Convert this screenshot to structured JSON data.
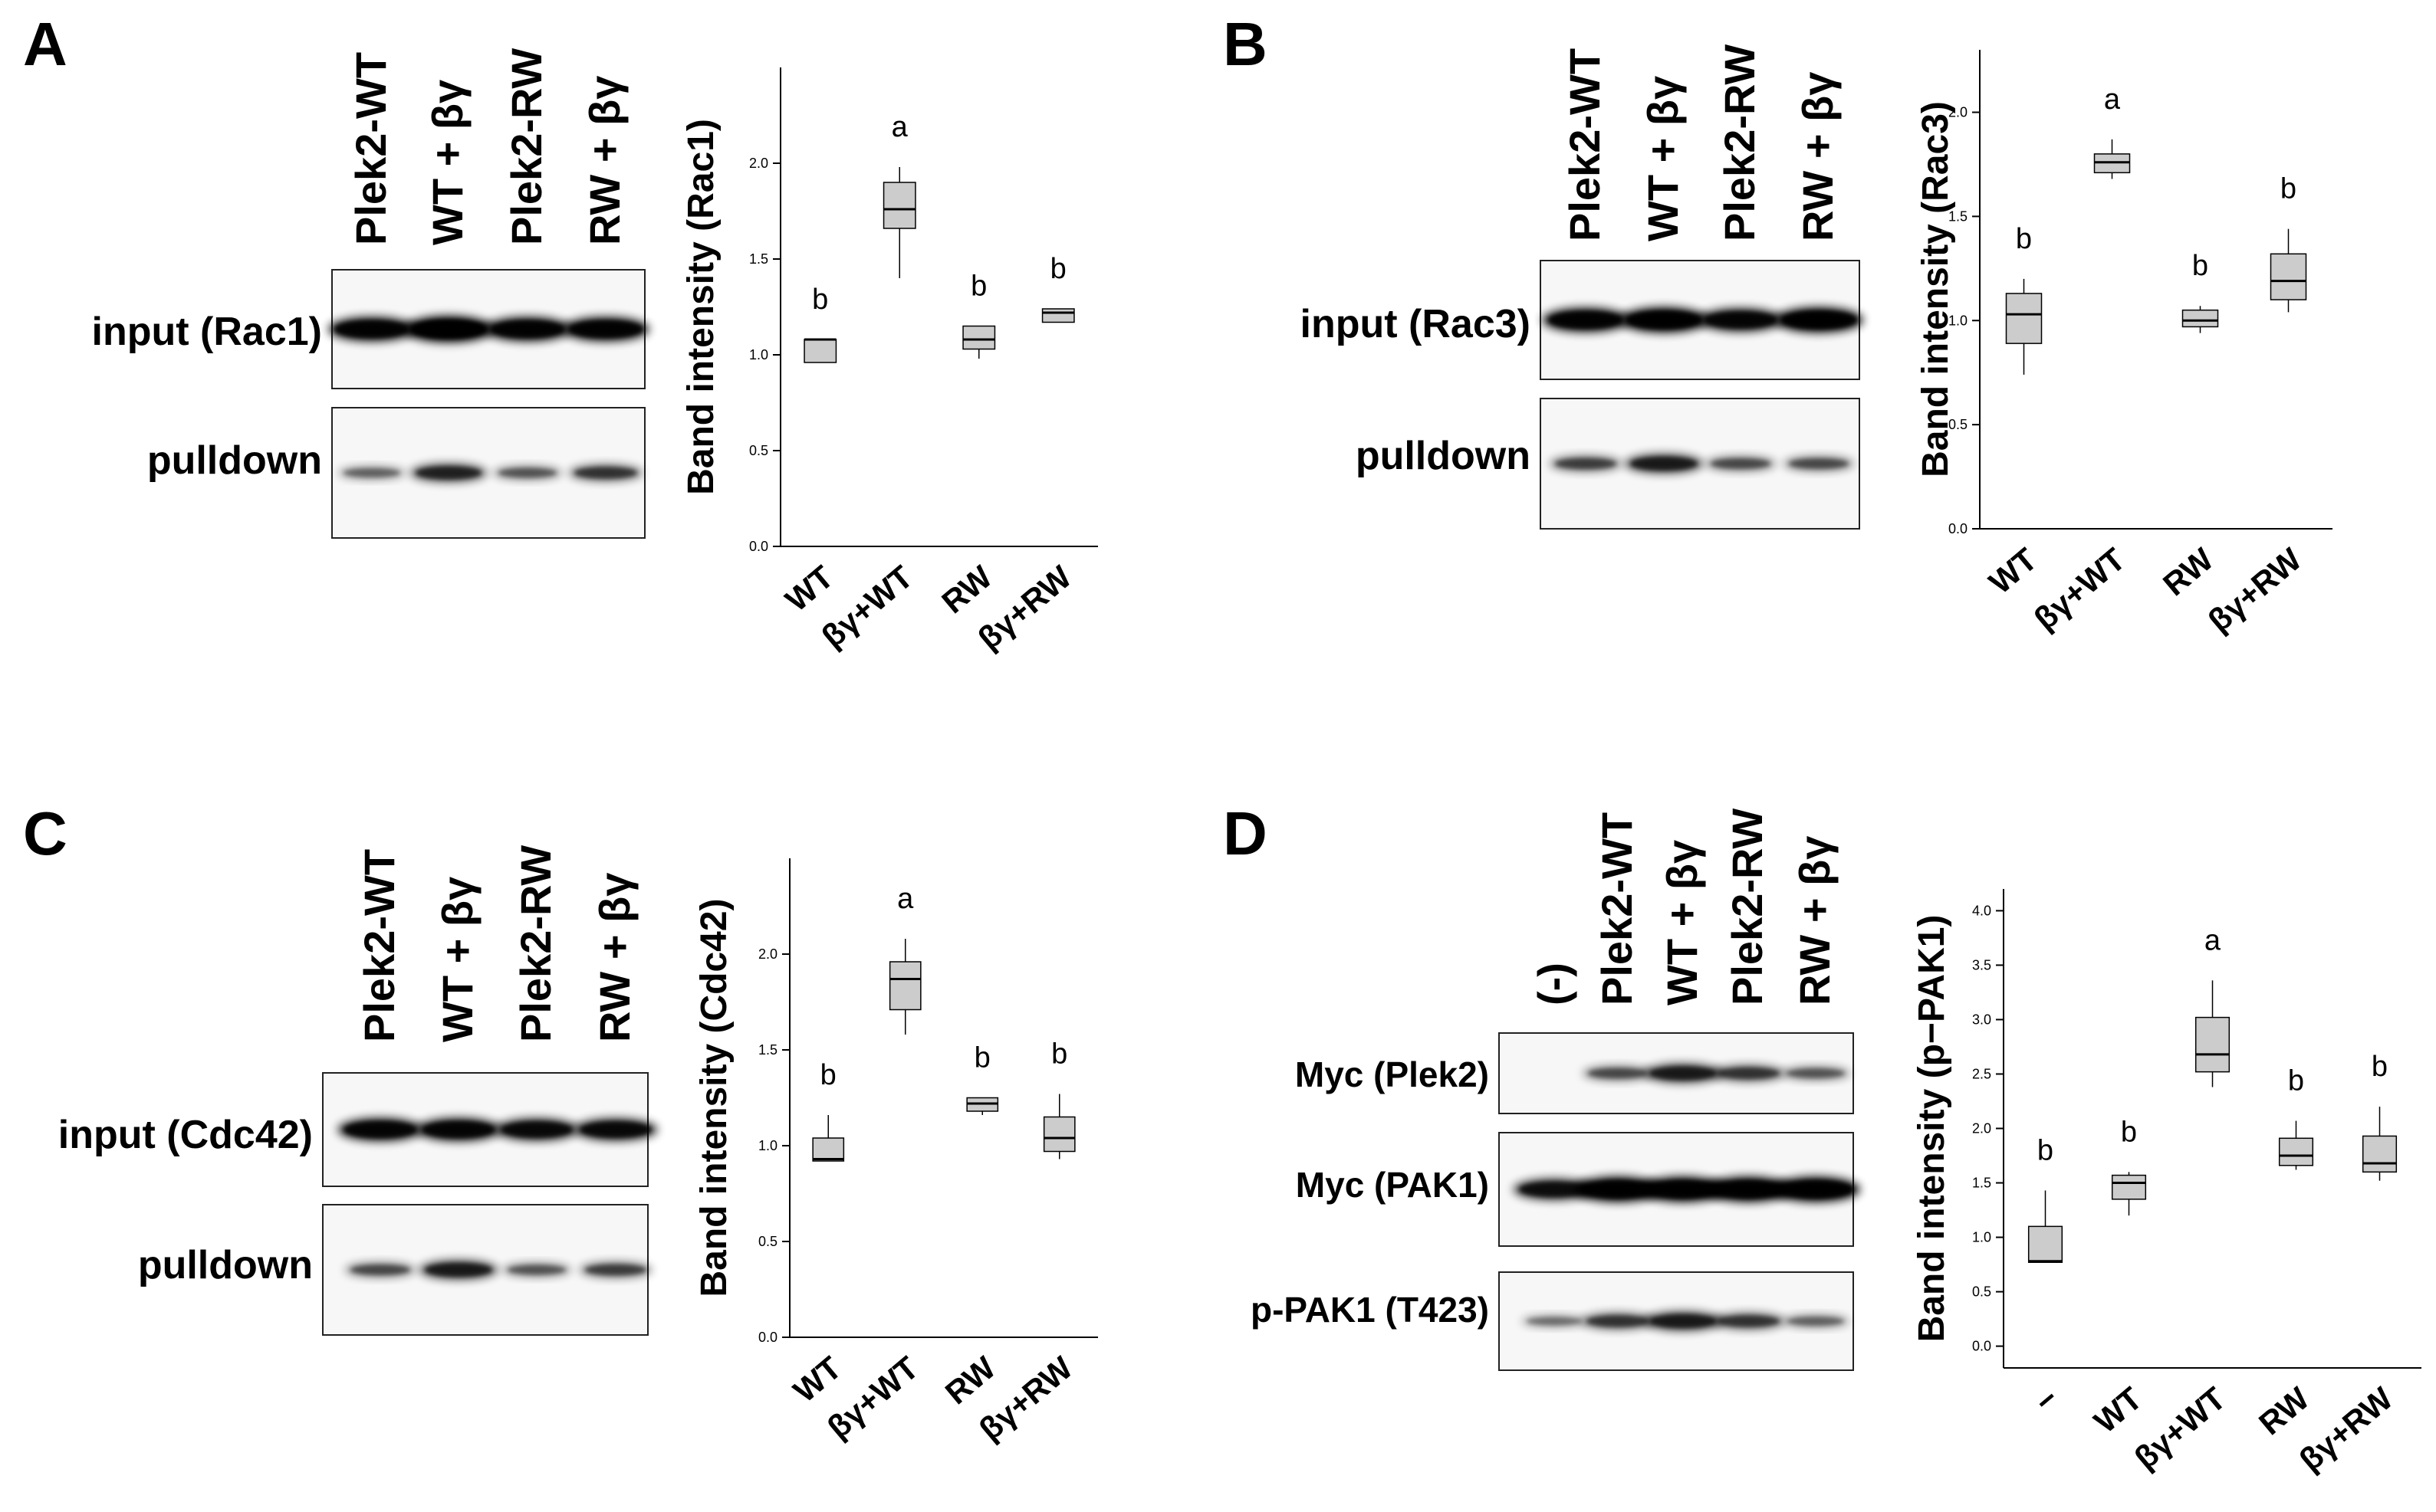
{
  "panels": [
    {
      "id": "A",
      "letter": "A",
      "lanes": [
        "Plek2-WT",
        "WT + βγ",
        "Plek2-RW",
        "RW + βγ"
      ],
      "blot_rows": [
        "input (Rac1)",
        "pulldown"
      ],
      "band_strength": [
        [
          0.85,
          0.95,
          0.85,
          0.85
        ],
        [
          0.25,
          0.55,
          0.3,
          0.45
        ]
      ]
    },
    {
      "id": "B",
      "letter": "B",
      "lanes": [
        "Plek2-WT",
        "WT + βγ",
        "Plek2-RW",
        "RW + βγ"
      ],
      "blot_rows": [
        "input (Rac3)",
        "pulldown"
      ],
      "band_strength": [
        [
          0.85,
          0.9,
          0.8,
          0.9
        ],
        [
          0.4,
          0.6,
          0.35,
          0.35
        ]
      ]
    },
    {
      "id": "C",
      "letter": "C",
      "lanes": [
        "Plek2-WT",
        "WT + βγ",
        "Plek2-RW",
        "RW + βγ"
      ],
      "blot_rows": [
        "input (Cdc42)",
        "pulldown"
      ],
      "band_strength": [
        [
          0.8,
          0.8,
          0.75,
          0.75
        ],
        [
          0.35,
          0.6,
          0.3,
          0.4
        ]
      ]
    },
    {
      "id": "D",
      "letter": "D",
      "lanes": [
        "(-)",
        "Plek2-WT",
        "WT + βγ",
        "Plek2-RW",
        "RW + βγ"
      ],
      "blot_rows": [
        "Myc (Plek2)",
        "Myc (PAK1)",
        "p-PAK1 (T423)"
      ],
      "band_strength": [
        [
          0.0,
          0.35,
          0.6,
          0.45,
          0.3
        ],
        [
          0.7,
          0.9,
          0.9,
          0.9,
          0.9
        ],
        [
          0.2,
          0.45,
          0.6,
          0.45,
          0.25
        ]
      ]
    }
  ],
  "chart_data": [
    {
      "panel": "A",
      "type": "box",
      "ylabel": "Band intensity (Rac1)",
      "ylim": [
        0,
        2.5
      ],
      "yticks": [
        "0.0",
        "0.5",
        "1.0",
        "1.5",
        "2.0"
      ],
      "categories": [
        "WT",
        "βγ+WT",
        "RW",
        "βγ+RW"
      ],
      "boxes": [
        {
          "min": 0.96,
          "q1": 0.96,
          "median": 1.08,
          "q3": 1.08,
          "max": 1.08
        },
        {
          "min": 1.4,
          "q1": 1.66,
          "median": 1.76,
          "q3": 1.9,
          "max": 1.98
        },
        {
          "min": 0.98,
          "q1": 1.03,
          "median": 1.08,
          "q3": 1.15,
          "max": 1.15
        },
        {
          "min": 1.17,
          "q1": 1.17,
          "median": 1.22,
          "q3": 1.24,
          "max": 1.24
        }
      ],
      "letters": [
        "b",
        "a",
        "b",
        "b"
      ]
    },
    {
      "panel": "B",
      "type": "box",
      "ylabel": "Band intensity (Rac3)",
      "ylim": [
        0,
        2.3
      ],
      "yticks": [
        "0.0",
        "0.5",
        "1.0",
        "1.5",
        "2.0"
      ],
      "categories": [
        "WT",
        "βγ+WT",
        "RW",
        "βγ+RW"
      ],
      "boxes": [
        {
          "min": 0.74,
          "q1": 0.89,
          "median": 1.03,
          "q3": 1.13,
          "max": 1.2
        },
        {
          "min": 1.68,
          "q1": 1.71,
          "median": 1.76,
          "q3": 1.8,
          "max": 1.87
        },
        {
          "min": 0.94,
          "q1": 0.97,
          "median": 1.0,
          "q3": 1.05,
          "max": 1.07
        },
        {
          "min": 1.04,
          "q1": 1.1,
          "median": 1.19,
          "q3": 1.32,
          "max": 1.44
        }
      ],
      "letters": [
        "b",
        "a",
        "b",
        "b"
      ]
    },
    {
      "panel": "C",
      "type": "box",
      "ylabel": "Band intensity (Cdc42)",
      "ylim": [
        0,
        2.5
      ],
      "yticks": [
        "0.0",
        "0.5",
        "1.0",
        "1.5",
        "2.0"
      ],
      "categories": [
        "WT",
        "βγ+WT",
        "RW",
        "βγ+RW"
      ],
      "boxes": [
        {
          "min": 0.92,
          "q1": 0.92,
          "median": 0.93,
          "q3": 1.04,
          "max": 1.16
        },
        {
          "min": 1.58,
          "q1": 1.71,
          "median": 1.87,
          "q3": 1.96,
          "max": 2.08
        },
        {
          "min": 1.16,
          "q1": 1.18,
          "median": 1.22,
          "q3": 1.25,
          "max": 1.25
        },
        {
          "min": 0.93,
          "q1": 0.97,
          "median": 1.04,
          "q3": 1.15,
          "max": 1.27
        }
      ],
      "letters": [
        "b",
        "a",
        "b",
        "b"
      ]
    },
    {
      "panel": "D",
      "type": "box",
      "ylabel": "Band intensity (p−PAK1)",
      "ylim": [
        -0.2,
        4.2
      ],
      "yticks": [
        "0.0",
        "0.5",
        "1.0",
        "1.5",
        "2.0",
        "2.5",
        "3.0",
        "3.5",
        "4.0"
      ],
      "categories": [
        "−",
        "WT",
        "βγ+WT",
        "RW",
        "βγ+RW"
      ],
      "boxes": [
        {
          "min": 0.77,
          "q1": 0.77,
          "median": 0.78,
          "q3": 1.1,
          "max": 1.43
        },
        {
          "min": 1.2,
          "q1": 1.35,
          "median": 1.5,
          "q3": 1.57,
          "max": 1.6
        },
        {
          "min": 2.38,
          "q1": 2.52,
          "median": 2.68,
          "q3": 3.02,
          "max": 3.36
        },
        {
          "min": 1.62,
          "q1": 1.66,
          "median": 1.75,
          "q3": 1.91,
          "max": 2.07
        },
        {
          "min": 1.52,
          "q1": 1.6,
          "median": 1.68,
          "q3": 1.93,
          "max": 2.2
        }
      ],
      "letters": [
        "b",
        "b",
        "a",
        "b",
        "b"
      ]
    }
  ]
}
